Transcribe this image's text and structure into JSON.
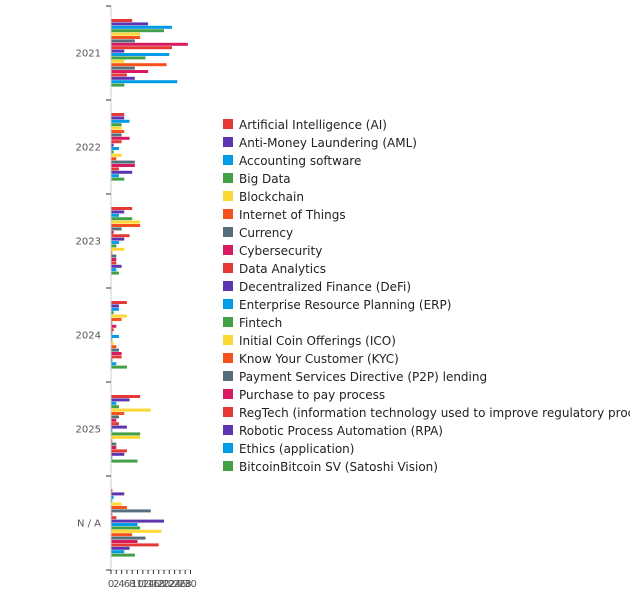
{
  "chart_data": {
    "type": "bar",
    "orientation": "horizontal",
    "title": "",
    "xlabel": "",
    "ylabel": "",
    "categories": [
      "2021",
      "2022",
      "2023",
      "2024",
      "2025",
      "N / A"
    ],
    "xlim": [
      0,
      30
    ],
    "x_ticks": [
      "0",
      "2",
      "4",
      "6",
      "8",
      "10",
      "12",
      "14",
      "16",
      "18",
      "20",
      "22",
      "24",
      "26",
      "28",
      "30"
    ],
    "grid": false,
    "legend_position": "right",
    "series": [
      {
        "name": "Artificial Intelligence (AI)",
        "color": "#e53935",
        "values": [
          8,
          5,
          8,
          6,
          11,
          0.5
        ]
      },
      {
        "name": "Anti-Money Laundering (AML)",
        "color": "#5e35b1",
        "values": [
          14,
          5,
          5,
          3,
          7,
          5
        ]
      },
      {
        "name": "Accounting software",
        "color": "#039be5",
        "values": [
          23,
          7,
          3,
          3,
          2,
          1
        ]
      },
      {
        "name": "Big Data",
        "color": "#43a047",
        "values": [
          20,
          4,
          8,
          1,
          3,
          0.5
        ]
      },
      {
        "name": "Blockchain",
        "color": "#fdd835",
        "values": [
          11,
          4,
          11,
          6,
          15,
          4
        ]
      },
      {
        "name": "Internet of Things",
        "color": "#f4511e",
        "values": [
          11,
          5,
          11,
          4,
          5,
          6
        ]
      },
      {
        "name": "Currency",
        "color": "#546e7a",
        "values": [
          9,
          4,
          4,
          0.5,
          3,
          15
        ]
      },
      {
        "name": "Cybersecurity",
        "color": "#d81b60",
        "values": [
          29,
          7,
          1,
          2,
          2,
          0.5
        ]
      },
      {
        "name": "Data Analytics",
        "color": "#e53935",
        "values": [
          23,
          4,
          7,
          1,
          3,
          2
        ]
      },
      {
        "name": "Decentralized Finance (DeFi)",
        "color": "#5e35b1",
        "values": [
          5,
          1,
          5,
          0.5,
          6,
          20
        ]
      },
      {
        "name": "Enterprise Resource Planning (ERP)",
        "color": "#039be5",
        "values": [
          22,
          3,
          3,
          3,
          0.5,
          10
        ]
      },
      {
        "name": "Fintech",
        "color": "#43a047",
        "values": [
          13,
          1,
          2,
          0.5,
          11,
          11
        ]
      },
      {
        "name": "Initial Coin Offerings (ICO)",
        "color": "#fdd835",
        "values": [
          5,
          4,
          5,
          1,
          11,
          19
        ]
      },
      {
        "name": "Know Your Customer (KYC)",
        "color": "#f4511e",
        "values": [
          21,
          2,
          0.5,
          2,
          0.5,
          8
        ]
      },
      {
        "name": "Payment Services Directive (P2P) lending",
        "color": "#546e7a",
        "values": [
          9,
          9,
          2,
          3,
          2,
          13
        ]
      },
      {
        "name": "Purchase to pay process",
        "color": "#d81b60",
        "values": [
          14,
          9,
          2,
          4,
          2,
          10
        ]
      },
      {
        "name": "RegTech (information technology used to improve regulatory processes)",
        "color": "#e53935",
        "values": [
          6,
          3,
          2,
          4,
          6,
          18
        ]
      },
      {
        "name": "Robotic Process Automation (RPA)",
        "color": "#5e35b1",
        "values": [
          9,
          8,
          4,
          0.5,
          5,
          7
        ]
      },
      {
        "name": "Ethics (application)",
        "color": "#039be5",
        "values": [
          25,
          3,
          2,
          2,
          0.5,
          5
        ]
      },
      {
        "name": "BitcoinBitcoin SV (Satoshi Vision)",
        "color": "#43a047",
        "values": [
          5,
          5,
          3,
          6,
          10,
          9
        ]
      }
    ]
  }
}
